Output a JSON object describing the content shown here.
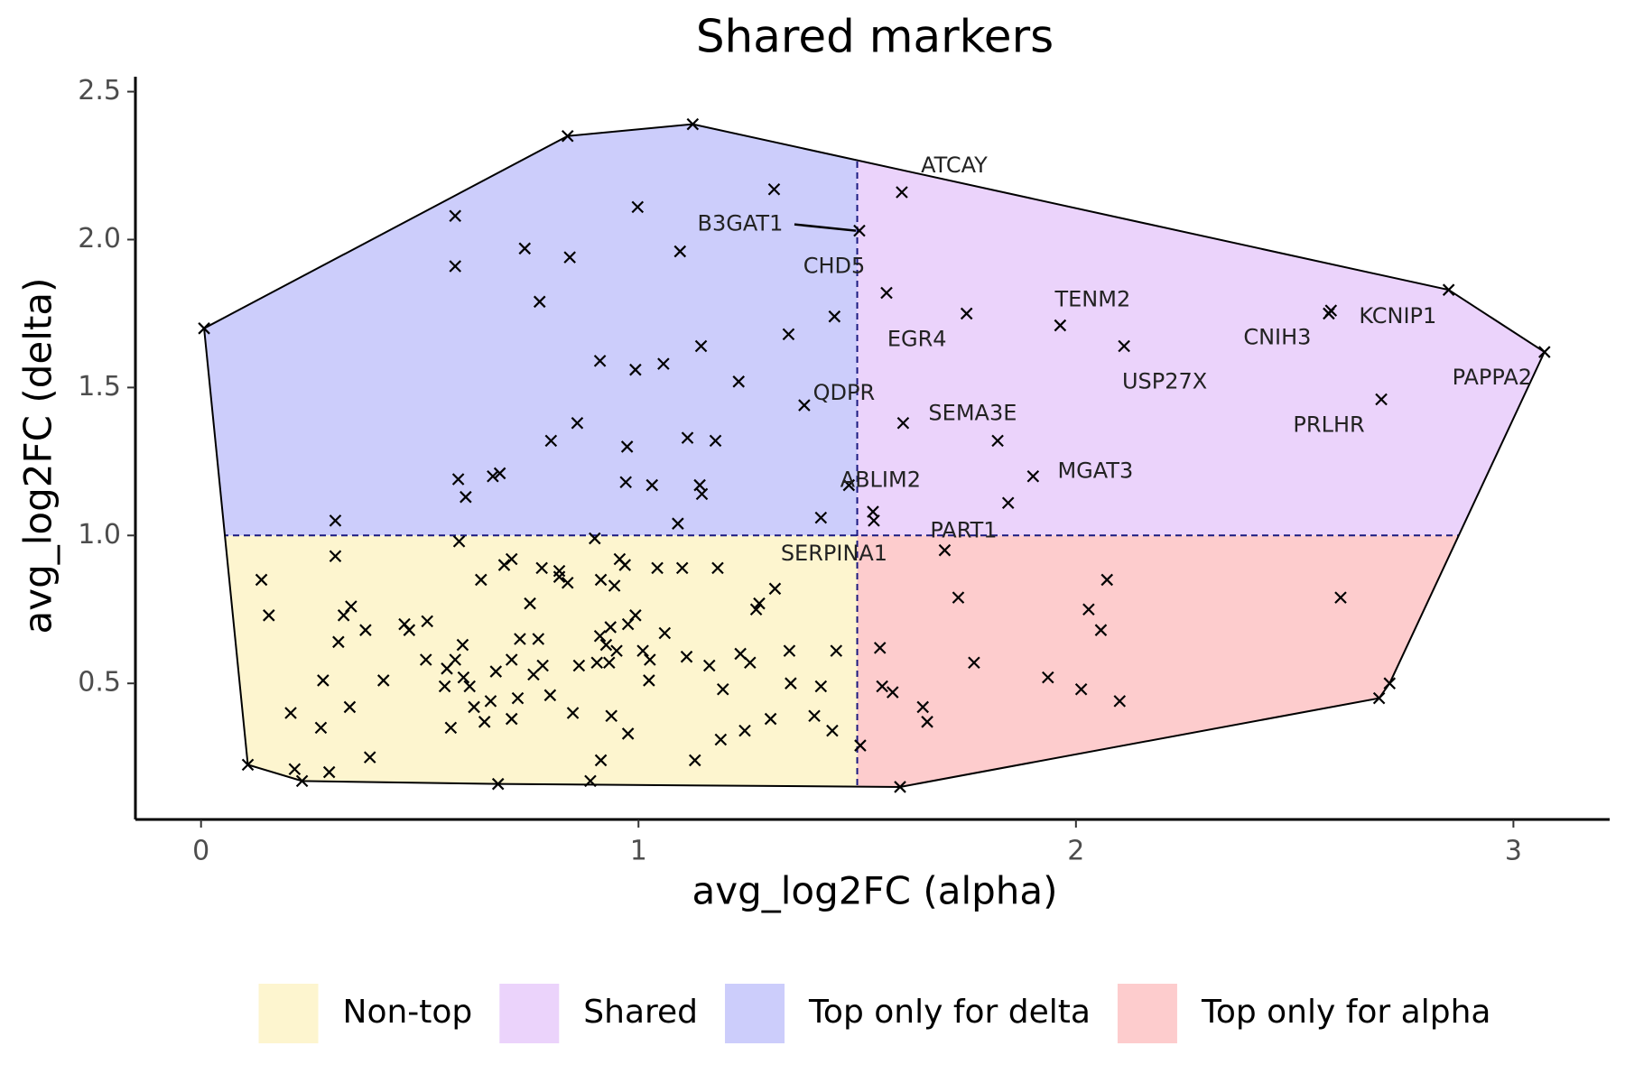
{
  "chart_data": {
    "type": "scatter",
    "title": "Shared markers",
    "x_label": "avg_log2FC (alpha)",
    "y_label": "avg_log2FC (delta)",
    "xlim": [
      -0.15,
      3.22
    ],
    "ylim": [
      0.04,
      2.52
    ],
    "xticks": [
      0,
      1,
      2,
      3
    ],
    "yticks": [
      0.5,
      {
        "value": 1,
        "label": "1.0"
      },
      1.5,
      {
        "value": 2,
        "label": "2.0"
      },
      2.5
    ],
    "thresholds": {
      "x": 1.5,
      "y": 1
    },
    "regions": [
      {
        "name": "Non-top",
        "color": "#fdf5cf"
      },
      {
        "name": "Shared",
        "color": "#ebd3fb"
      },
      {
        "name": "Top only for delta",
        "color": "#cccdfb"
      },
      {
        "name": "Top only for alpha",
        "color": "#fdcccd"
      }
    ],
    "x": [
      1.602,
      1.505,
      1.567,
      1.75,
      1.964,
      2.11,
      2.578,
      2.583,
      3.071,
      2.698,
      1.379,
      1.605,
      1.902,
      1.481,
      1.7,
      1.538,
      0.007,
      0.838,
      1.124,
      1.31,
      0.998,
      0.581,
      0.74,
      0.843,
      1.095,
      0.581,
      0.774,
      1.448,
      1.343,
      1.143,
      0.912,
      1.057,
      0.993,
      1.229,
      0.86,
      0.8,
      1.112,
      1.176,
      0.974,
      0.588,
      0.667,
      0.683,
      0.971,
      1.031,
      1.14,
      1.145,
      0.605,
      0.307,
      1.09,
      1.417,
      2.852,
      1.821,
      1.845,
      1.536,
      2.071,
      2.605,
      1.731,
      2.029,
      2.057,
      1.552,
      1.767,
      1.936,
      2.012,
      1.557,
      1.581,
      2.1,
      1.65,
      1.66,
      2.717,
      2.693,
      1.598,
      1.507,
      0.107,
      0.231,
      0.214,
      0.293,
      0.679,
      0.89,
      0.138,
      0.155,
      0.205,
      0.274,
      0.279,
      0.307,
      0.314,
      0.326,
      0.343,
      0.34,
      0.376,
      0.386,
      0.417,
      0.465,
      0.476,
      0.517,
      0.514,
      0.562,
      0.557,
      0.571,
      0.581,
      0.598,
      0.6,
      0.614,
      0.59,
      0.624,
      0.64,
      0.648,
      0.662,
      0.674,
      0.693,
      0.71,
      0.71,
      0.71,
      0.729,
      0.724,
      0.752,
      0.76,
      0.771,
      0.781,
      0.779,
      0.798,
      0.819,
      0.819,
      0.838,
      0.85,
      0.864,
      0.9,
      0.905,
      0.914,
      0.912,
      0.914,
      0.926,
      0.933,
      0.936,
      0.938,
      0.945,
      0.957,
      0.969,
      0.95,
      0.976,
      0.976,
      0.993,
      1.01,
      1.024,
      1.026,
      1.043,
      1.06,
      1.1,
      1.11,
      1.129,
      1.162,
      1.181,
      1.193,
      1.188,
      1.233,
      1.243,
      1.255,
      1.269,
      1.276,
      1.302,
      1.312,
      1.345,
      1.348,
      1.402,
      1.417,
      1.443,
      1.452
    ],
    "y": [
      2.16,
      2.03,
      1.82,
      1.75,
      1.71,
      1.64,
      1.75,
      1.76,
      1.62,
      1.46,
      1.44,
      1.38,
      1.2,
      1.17,
      0.95,
      1.05,
      1.7,
      2.35,
      2.39,
      2.17,
      2.11,
      2.08,
      1.97,
      1.94,
      1.96,
      1.91,
      1.79,
      1.74,
      1.68,
      1.64,
      1.59,
      1.58,
      1.56,
      1.52,
      1.38,
      1.32,
      1.33,
      1.32,
      1.3,
      1.19,
      1.2,
      1.21,
      1.18,
      1.17,
      1.17,
      1.14,
      1.13,
      1.05,
      1.04,
      1.06,
      1.83,
      1.32,
      1.11,
      1.08,
      0.85,
      0.79,
      0.79,
      0.75,
      0.68,
      0.62,
      0.57,
      0.52,
      0.48,
      0.49,
      0.47,
      0.44,
      0.42,
      0.37,
      0.5,
      0.45,
      0.15,
      0.29,
      0.225,
      0.17,
      0.21,
      0.2,
      0.16,
      0.17,
      0.85,
      0.73,
      0.4,
      0.35,
      0.51,
      0.93,
      0.64,
      0.73,
      0.76,
      0.42,
      0.68,
      0.25,
      0.51,
      0.7,
      0.68,
      0.71,
      0.58,
      0.55,
      0.49,
      0.35,
      0.58,
      0.63,
      0.52,
      0.49,
      0.98,
      0.42,
      0.85,
      0.37,
      0.44,
      0.54,
      0.9,
      0.92,
      0.38,
      0.58,
      0.65,
      0.45,
      0.77,
      0.53,
      0.65,
      0.56,
      0.89,
      0.46,
      0.88,
      0.86,
      0.84,
      0.4,
      0.56,
      0.99,
      0.57,
      0.85,
      0.66,
      0.24,
      0.63,
      0.57,
      0.69,
      0.39,
      0.83,
      0.92,
      0.9,
      0.61,
      0.33,
      0.7,
      0.73,
      0.61,
      0.51,
      0.58,
      0.89,
      0.67,
      0.89,
      0.59,
      0.24,
      0.56,
      0.89,
      0.48,
      0.31,
      0.6,
      0.34,
      0.57,
      0.75,
      0.77,
      0.38,
      0.82,
      0.61,
      0.5,
      0.39,
      0.49,
      0.34,
      0.61
    ],
    "labels": [
      "ATCAY",
      "B3GAT1",
      "CHD5",
      "EGR4",
      "TENM2",
      "USP27X",
      "CNIH3",
      "KCNIP1",
      "PAPPA2",
      "PRLHR",
      "QDPR",
      "SEMA3E",
      "MGAT3",
      "ABLIM2",
      "PART1",
      "SERPINA1",
      null,
      null,
      null,
      null,
      null,
      null,
      null,
      null,
      null,
      null,
      null,
      null,
      null,
      null,
      null,
      null,
      null,
      null,
      null,
      null,
      null,
      null,
      null,
      null,
      null,
      null,
      null,
      null,
      null,
      null,
      null,
      null,
      null,
      null,
      null,
      null,
      null,
      null,
      null,
      null,
      null,
      null,
      null,
      null,
      null,
      null,
      null,
      null,
      null,
      null,
      null,
      null,
      null,
      null,
      null,
      null,
      null,
      null,
      null,
      null,
      null,
      null,
      null,
      null,
      null,
      null,
      null,
      null,
      null,
      null,
      null,
      null,
      null,
      null,
      null,
      null,
      null,
      null,
      null,
      null,
      null,
      null,
      null,
      null,
      null,
      null,
      null,
      null,
      null,
      null,
      null,
      null,
      null,
      null,
      null,
      null,
      null,
      null,
      null,
      null,
      null,
      null,
      null,
      null,
      null,
      null,
      null,
      null,
      null,
      null,
      null,
      null,
      null,
      null,
      null,
      null,
      null,
      null,
      null,
      null,
      null,
      null,
      null,
      null,
      null,
      null,
      null,
      null,
      null,
      null,
      null,
      null,
      null,
      null,
      null,
      null,
      null,
      null,
      null,
      null,
      null,
      null,
      null,
      null,
      null,
      null,
      null,
      null,
      null,
      null
    ],
    "marker_color": "#000000"
  }
}
